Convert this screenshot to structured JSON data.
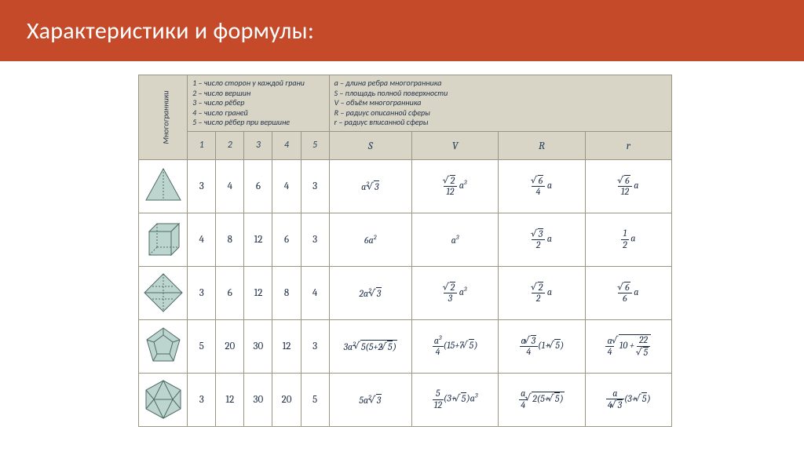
{
  "colors": {
    "title_bg": "#c44a2a",
    "title_fg": "#ffffff",
    "table_header_bg": "#d9d5c6",
    "table_border": "#9b9584",
    "cell_bg": "#ffffff",
    "text": "#1b2b44",
    "shape_fill": "#bcd6cf",
    "shape_stroke": "#516a66"
  },
  "title": "Характеристики и формулы:",
  "row_label": "Многогранники",
  "legend_left": [
    "1 – число сторон у каждой грани",
    "2 – число вершин",
    "3 – число рёбер",
    "4 – число граней",
    "5 – число рёбер при вершине"
  ],
  "legend_right": [
    "a – длина ребра многогранника",
    "S – площадь полной поверхности",
    "V – объём многогранника",
    "R – радиус описанной сферы",
    "r – радиус вписанной сферы"
  ],
  "num_headers": [
    "1",
    "2",
    "3",
    "4",
    "5"
  ],
  "var_headers": [
    "S",
    "V",
    "R",
    "r"
  ],
  "rows": [
    {
      "shape": "tetra",
      "nums": [
        "3",
        "4",
        "6",
        "4",
        "3"
      ],
      "S": "a²√3",
      "V": "(√2 / 12) a³",
      "R": "(√6 / 4) a",
      "r": "(√6 / 12) a"
    },
    {
      "shape": "cube",
      "nums": [
        "4",
        "8",
        "12",
        "6",
        "3"
      ],
      "S": "6a²",
      "V": "a³",
      "R": "(√3 / 2) a",
      "r": "(1 / 2) a"
    },
    {
      "shape": "octa",
      "nums": [
        "3",
        "6",
        "12",
        "8",
        "4"
      ],
      "S": "2a²√3",
      "V": "(√2 / 3) a³",
      "R": "(√2 / 2) a",
      "r": "(√6 / 6) a"
    },
    {
      "shape": "dodeca",
      "nums": [
        "5",
        "20",
        "30",
        "12",
        "3"
      ],
      "S": "3a²√(5(5+2√5))",
      "V": "(a³ / 4)(15+7√5)",
      "R": "(a√3 / 4)(1+√5)",
      "r": "(a / 4)√(10 + 22/√5)"
    },
    {
      "shape": "icosa",
      "nums": [
        "3",
        "12",
        "30",
        "20",
        "5"
      ],
      "S": "5a²√3",
      "V": "(5 / 12)(3+√5)a³",
      "R": "(a / 4)√(2(5+√5))",
      "r": "(a / 4√3)(3+√5)"
    }
  ]
}
